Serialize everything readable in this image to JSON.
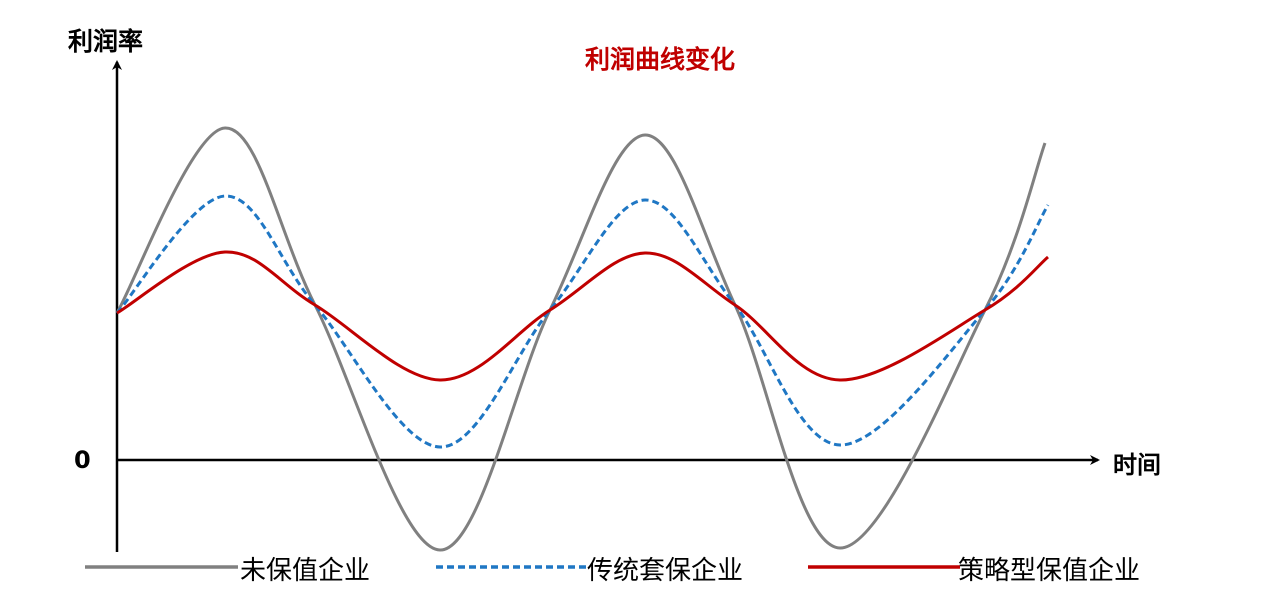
{
  "chart_data": {
    "type": "line",
    "title": "利润曲线变化",
    "ylabel": "利润率",
    "xlabel": "时间",
    "y_tick_labels": [
      "0"
    ],
    "xlim": [
      0,
      9.8
    ],
    "ylim": [
      -1,
      4
    ],
    "grid": false,
    "legend_placement": "bottom",
    "series": [
      {
        "name": "未保值企业",
        "color": "#808080",
        "style": "solid",
        "x": [
          0,
          1.08,
          1.98,
          3.23,
          4.33,
          5.28,
          6.18,
          7.23,
          8.68,
          9.28
        ],
        "y": [
          1.47,
          3.32,
          1.55,
          -0.9,
          1.5,
          3.25,
          1.55,
          -0.88,
          1.5,
          3.17
        ]
      },
      {
        "name": "传统套保企业",
        "color": "#1f77c4",
        "style": "dashed",
        "x": [
          0,
          1.08,
          1.98,
          3.23,
          4.33,
          5.28,
          6.18,
          7.23,
          8.68,
          9.31
        ],
        "y": [
          1.47,
          2.64,
          1.55,
          0.13,
          1.5,
          2.6,
          1.55,
          0.15,
          1.5,
          2.55
        ]
      },
      {
        "name": "策略型保值企业",
        "color": "#c00000",
        "style": "solid",
        "x": [
          0,
          1.08,
          1.98,
          3.23,
          4.33,
          5.28,
          6.18,
          7.23,
          8.68,
          9.31
        ],
        "y": [
          1.47,
          2.08,
          1.55,
          0.8,
          1.5,
          2.07,
          1.55,
          0.8,
          1.5,
          2.03
        ]
      }
    ]
  }
}
